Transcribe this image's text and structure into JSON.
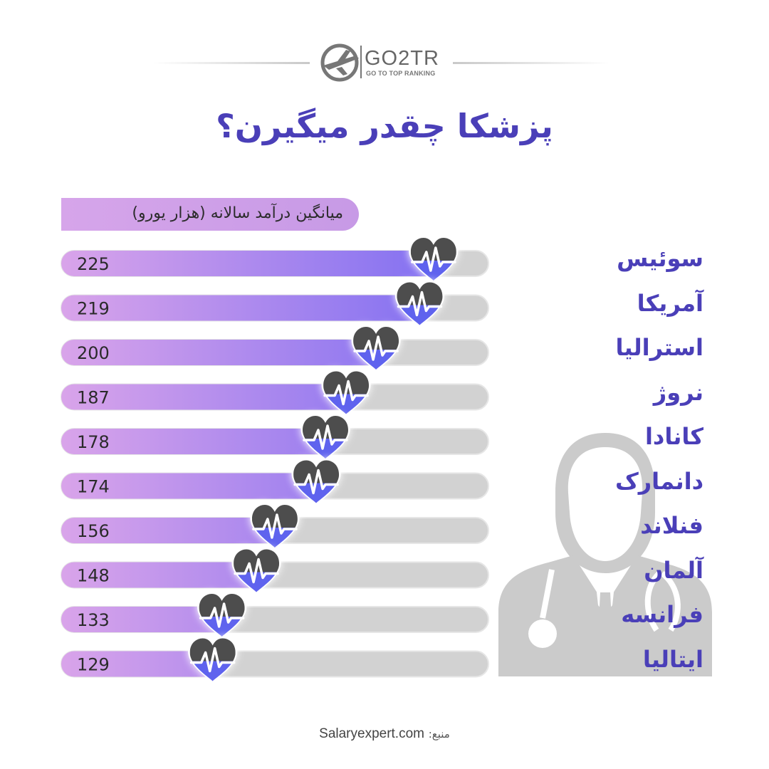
{
  "brand": {
    "name": "GO2TR",
    "tagline": "GO TO TOP RANKING"
  },
  "title": "پزشکا چقدر میگیرن؟",
  "colors": {
    "accent": "#4a3fb8",
    "bar_start": "#d9a4ea",
    "bar_end": "#7b6cf2",
    "track": "#d2d2d2",
    "heart_dark": "#4d4d4d",
    "heart_blue": "#5f63ee",
    "doctor_icon": "#cbcbcb"
  },
  "chart_data": {
    "type": "bar",
    "orientation": "horizontal",
    "caption": "میانگین درآمد سالانه (هزار یورو)",
    "categories": [
      "سوئیس",
      "آمریکا",
      "استرالیا",
      "نروژ",
      "کانادا",
      "دانمارک",
      "فنلاند",
      "آلمان",
      "فرانسه",
      "ایتالیا"
    ],
    "values": [
      225,
      219,
      200,
      187,
      178,
      174,
      156,
      148,
      133,
      129
    ],
    "value_labels": [
      "225",
      "219",
      "200",
      "187",
      "178",
      "174",
      "156",
      "148",
      "133",
      "129"
    ],
    "marker_icon": "heart-pulse-icon",
    "grid": false,
    "legend": "none"
  },
  "decoration": {
    "icon": "doctor-icon"
  },
  "source": {
    "label": "منبع:",
    "value": "Salaryexpert.com"
  }
}
